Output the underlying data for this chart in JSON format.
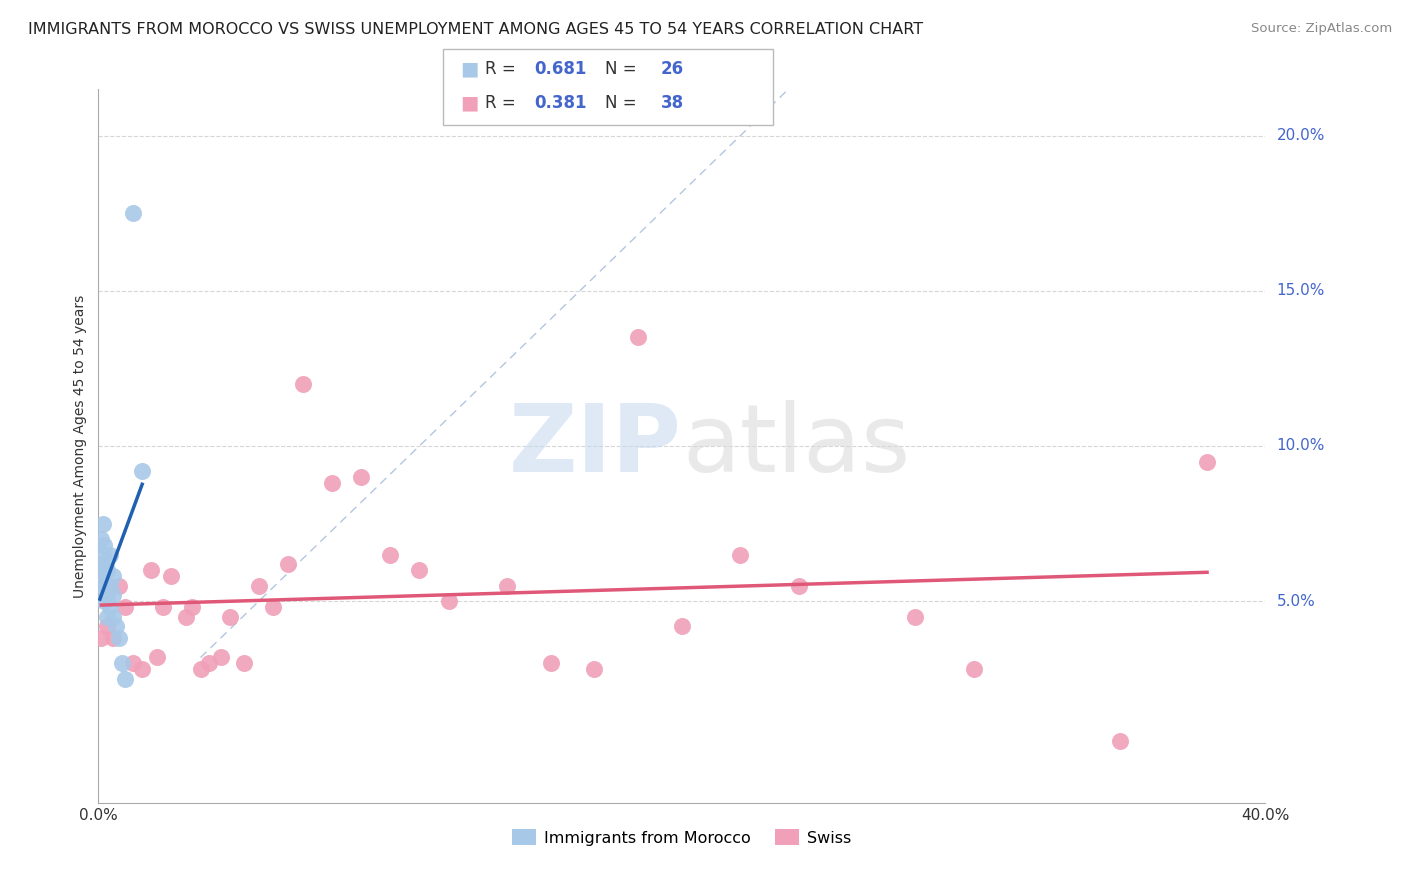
{
  "title": "IMMIGRANTS FROM MOROCCO VS SWISS UNEMPLOYMENT AMONG AGES 45 TO 54 YEARS CORRELATION CHART",
  "source": "Source: ZipAtlas.com",
  "ylabel": "Unemployment Among Ages 45 to 54 years",
  "right_yticks": [
    "20.0%",
    "15.0%",
    "10.0%",
    "5.0%"
  ],
  "right_ytick_vals": [
    0.2,
    0.15,
    0.1,
    0.05
  ],
  "xlim": [
    0.0,
    0.4
  ],
  "ylim": [
    -0.015,
    0.215
  ],
  "morocco_x": [
    0.0005,
    0.0008,
    0.001,
    0.001,
    0.001,
    0.0015,
    0.0015,
    0.002,
    0.002,
    0.002,
    0.002,
    0.003,
    0.003,
    0.003,
    0.004,
    0.004,
    0.004,
    0.005,
    0.005,
    0.005,
    0.006,
    0.007,
    0.008,
    0.009,
    0.015,
    0.012
  ],
  "morocco_y": [
    0.058,
    0.062,
    0.055,
    0.06,
    0.07,
    0.065,
    0.075,
    0.05,
    0.055,
    0.06,
    0.068,
    0.045,
    0.052,
    0.06,
    0.048,
    0.055,
    0.065,
    0.045,
    0.052,
    0.058,
    0.042,
    0.038,
    0.03,
    0.025,
    0.092,
    0.175
  ],
  "swiss_x": [
    0.001,
    0.003,
    0.005,
    0.007,
    0.009,
    0.012,
    0.015,
    0.018,
    0.02,
    0.022,
    0.025,
    0.03,
    0.032,
    0.035,
    0.038,
    0.042,
    0.045,
    0.05,
    0.055,
    0.06,
    0.065,
    0.07,
    0.08,
    0.09,
    0.1,
    0.11,
    0.12,
    0.14,
    0.155,
    0.17,
    0.185,
    0.2,
    0.22,
    0.24,
    0.28,
    0.3,
    0.35,
    0.38
  ],
  "swiss_y": [
    0.038,
    0.042,
    0.038,
    0.055,
    0.048,
    0.03,
    0.028,
    0.06,
    0.032,
    0.048,
    0.058,
    0.045,
    0.048,
    0.028,
    0.03,
    0.032,
    0.045,
    0.03,
    0.055,
    0.048,
    0.062,
    0.12,
    0.088,
    0.09,
    0.065,
    0.06,
    0.05,
    0.055,
    0.03,
    0.028,
    0.135,
    0.042,
    0.065,
    0.055,
    0.045,
    0.028,
    0.005,
    0.095
  ],
  "morocco_color": "#a8c8e8",
  "swiss_color": "#f0a0b8",
  "morocco_line_color": "#2060b0",
  "swiss_line_color": "#e05878",
  "dashed_line_color": "#a0b8d8",
  "morocco_R": 0.681,
  "morocco_N": 26,
  "swiss_R": 0.381,
  "swiss_N": 38,
  "legend_label1": "Immigrants from Morocco",
  "legend_label2": "Swiss",
  "title_fontsize": 11.5,
  "axis_label_fontsize": 10,
  "tick_fontsize": 11,
  "legend_fontsize": 12,
  "source_fontsize": 9.5
}
